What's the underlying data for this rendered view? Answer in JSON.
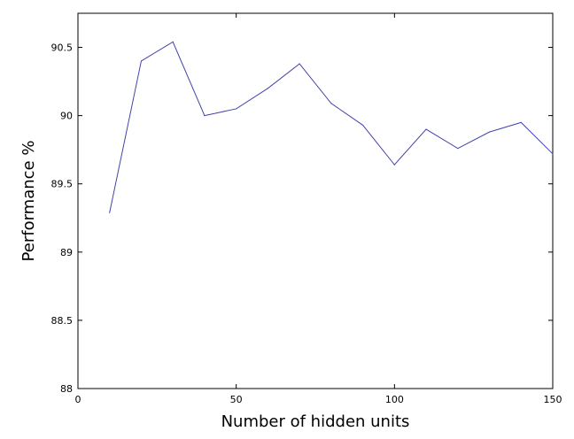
{
  "chart_data": {
    "type": "line",
    "title": "",
    "xlabel": "Number of hidden units",
    "ylabel": "Performance %",
    "xlim": [
      0,
      150
    ],
    "ylim": [
      88,
      90.75
    ],
    "x_ticks": [
      "0",
      "50",
      "100",
      "150"
    ],
    "y_ticks": [
      "88",
      "88.5",
      "89",
      "89.5",
      "90",
      "90.5"
    ],
    "grid": false,
    "series": [
      {
        "x": [
          10,
          20,
          30,
          40,
          50,
          60,
          70,
          80,
          90,
          100,
          110,
          120,
          130,
          140,
          150
        ],
        "y": [
          89.29,
          90.4,
          90.54,
          90.0,
          90.05,
          90.2,
          90.38,
          90.09,
          89.93,
          89.64,
          89.9,
          89.76,
          89.88,
          89.95,
          89.72
        ],
        "color": "#4444aa"
      }
    ]
  }
}
